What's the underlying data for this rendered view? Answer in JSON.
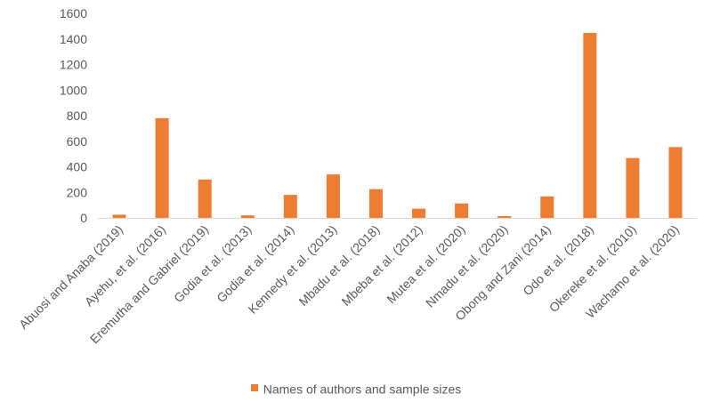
{
  "chart_data": {
    "type": "bar",
    "categories": [
      "Abuosi and Anaba (2019)",
      "Ayehu, et al. (2016)",
      "Eremutha and Gabriel (2019)",
      "Godia et al. (2013)",
      "Godia et al. (2014)",
      "Kennedy et al. (2013)",
      "Mbadu et al. (2018)",
      "Mbeba et al. (2012)",
      "Mutea et al. (2020)",
      "Nmadu et al. (2020)",
      "Obong and Zani (2014)",
      "Odo et al. (2018)",
      "Okereke et al. (2010)",
      "Wachamo et al. (2020)"
    ],
    "series": [
      {
        "name": "Names of authors and sample sizes",
        "color": "#ED7D31",
        "values": [
          25,
          780,
          300,
          20,
          180,
          340,
          225,
          72,
          113,
          14,
          168,
          1447,
          468,
          554
        ]
      }
    ],
    "ylim": [
      0,
      1600
    ],
    "yticks": [
      "0",
      "200",
      "400",
      "600",
      "800",
      "1000",
      "1200",
      "1400",
      "1600"
    ],
    "grid": false,
    "legend_position": "bottom",
    "axis_color": "#D9D9D9",
    "text_color": "#595959"
  }
}
